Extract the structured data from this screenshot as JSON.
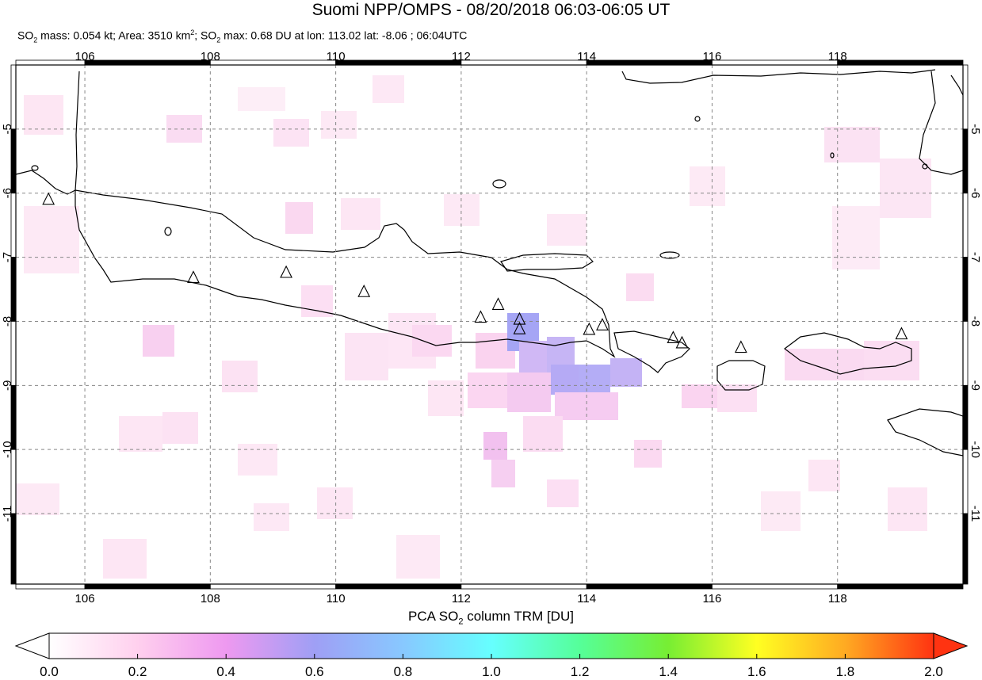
{
  "title": "Suomi NPP/OMPS - 08/20/2018 06:03-06:05 UT",
  "subtitle": {
    "p1": "SO",
    "sub1": "2",
    "p2": " mass: 0.054 kt; Area: 3510 km",
    "sup1": "2",
    "p3": "; SO",
    "sub2": "2",
    "p4": " max: 0.68 DU at lon: 113.02 lat: -8.06 ; 06:04UTC"
  },
  "map": {
    "lon_range": [
      104.9,
      120.0
    ],
    "lat_range": [
      -12.1,
      -4.0
    ],
    "lon_ticks": [
      "106",
      "108",
      "110",
      "112",
      "114",
      "116",
      "118"
    ],
    "lat_ticks": [
      "-5",
      "-6",
      "-7",
      "-8",
      "-9",
      "-10",
      "-11"
    ],
    "volcanoes": [
      {
        "lon": 105.42,
        "lat": -6.1
      },
      {
        "lon": 107.73,
        "lat": -7.32
      },
      {
        "lon": 109.21,
        "lat": -7.24
      },
      {
        "lon": 110.45,
        "lat": -7.54
      },
      {
        "lon": 112.31,
        "lat": -7.94
      },
      {
        "lon": 112.59,
        "lat": -7.74
      },
      {
        "lon": 112.93,
        "lat": -7.97
      },
      {
        "lon": 112.93,
        "lat": -8.12
      },
      {
        "lon": 114.04,
        "lat": -8.13
      },
      {
        "lon": 114.25,
        "lat": -8.06
      },
      {
        "lon": 115.38,
        "lat": -8.26
      },
      {
        "lon": 115.52,
        "lat": -8.34
      },
      {
        "lon": 116.46,
        "lat": -8.41
      },
      {
        "lon": 119.02,
        "lat": -8.2
      }
    ]
  },
  "colorbar": {
    "title_p1": "PCA SO",
    "title_sub": "2",
    "title_p2": " column TRM [DU]",
    "range": [
      0.0,
      2.0
    ],
    "tick_labels": [
      "0.0",
      "0.2",
      "0.4",
      "0.6",
      "0.8",
      "1.0",
      "1.2",
      "1.4",
      "1.6",
      "1.8",
      "2.0"
    ],
    "colors": [
      "#ffffff",
      "#ffd0ee",
      "#ee99f0",
      "#9f9ff5",
      "#88c8ff",
      "#66ffff",
      "#55ff99",
      "#77ee33",
      "#ffff22",
      "#ffaa22",
      "#ff3311"
    ]
  }
}
